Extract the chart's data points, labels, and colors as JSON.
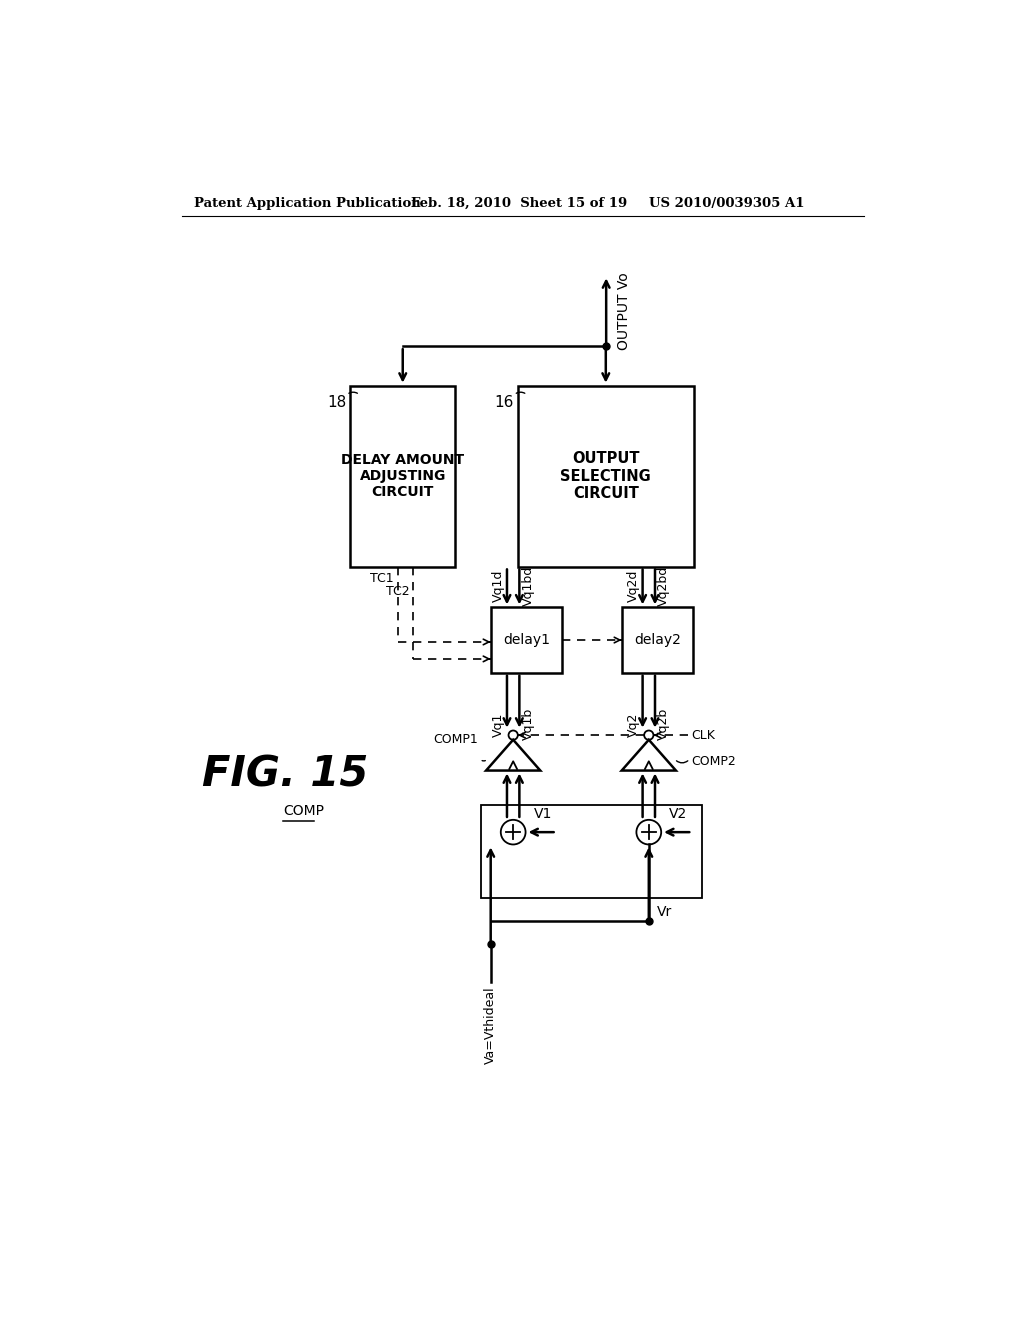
{
  "bg_color": "#ffffff",
  "header_left": "Patent Application Publication",
  "header_mid": "Feb. 18, 2010  Sheet 15 of 19",
  "header_right": "US 2010/0039305 A1",
  "fig_label": "FIG. 15",
  "box18_text": "DELAY AMOUNT\nADJUSTING\nCIRCUIT",
  "box16_text": "OUTPUT\nSELECTING\nCIRCUIT",
  "delay1_text": "delay1",
  "delay2_text": "delay2",
  "output_text": "OUTPUT Vo",
  "comp_label": "COMP",
  "va_label": "Va=Vthideal",
  "vr_label": "Vr",
  "v1_label": "V1",
  "v2_label": "V2",
  "tc1_label": "TC1",
  "tc2_label": "TC2",
  "vq1d": "Vq1d",
  "vq1bd": "Vq1bd",
  "vq2d": "Vq2d",
  "vq2bd": "Vq2bd",
  "vq1": "Vq1",
  "vq1b": "Vq1b",
  "vq2": "Vq2",
  "vq2b": "Vq2b",
  "comp1_label": "COMP1",
  "comp2_label": "COMP2",
  "clk_label": "CLK",
  "label18": "18",
  "label16": "16"
}
